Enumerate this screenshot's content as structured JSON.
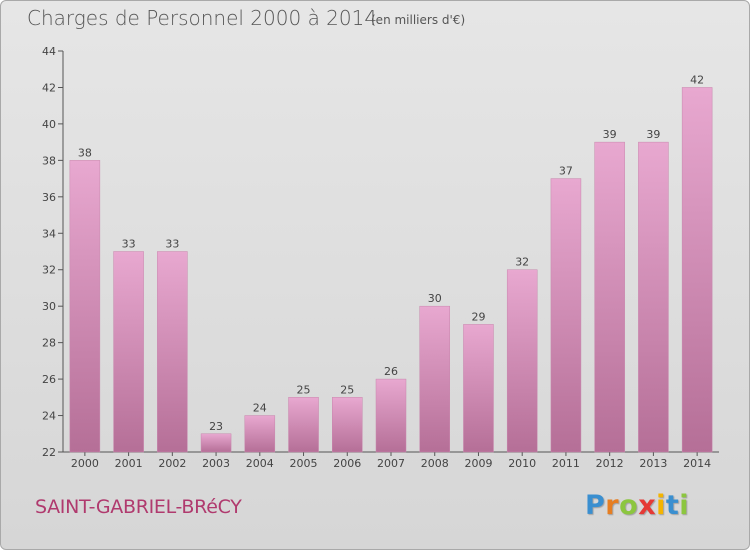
{
  "header": {
    "title": "Charges de Personnel 2000 à 2014",
    "subtitle": "(en milliers d'€)"
  },
  "footer": {
    "commune": "SAINT-GABRIEL-BRéCY",
    "brand": "Proxiti",
    "brand_letters": [
      {
        "ch": "P",
        "color": "#3a8fd0"
      },
      {
        "ch": "r",
        "color": "#e67e22"
      },
      {
        "ch": "o",
        "color": "#8cc63f"
      },
      {
        "ch": "x",
        "color": "#e53935"
      },
      {
        "ch": "i",
        "color": "#f4b400"
      },
      {
        "ch": "t",
        "color": "#3a8fd0"
      },
      {
        "ch": "i",
        "color": "#8cc63f"
      }
    ]
  },
  "chart_data": {
    "type": "bar",
    "title": "Charges de Personnel 2000 à 2014",
    "subtitle": "(en milliers d'€)",
    "categories": [
      "2000",
      "2001",
      "2002",
      "2003",
      "2004",
      "2005",
      "2006",
      "2007",
      "2008",
      "2009",
      "2010",
      "2011",
      "2012",
      "2013",
      "2014"
    ],
    "values": [
      38,
      33,
      33,
      23,
      24,
      25,
      25,
      26,
      30,
      29,
      32,
      37,
      39,
      39,
      42
    ],
    "ylim": [
      22,
      44
    ],
    "yticks": [
      22,
      24,
      26,
      28,
      30,
      32,
      34,
      36,
      38,
      40,
      42,
      44
    ],
    "grid": false,
    "bar_color_top": "#e8a8d0",
    "bar_color_bottom": "#b56f97",
    "axis_color": "#555555",
    "label_color": "#444444"
  }
}
